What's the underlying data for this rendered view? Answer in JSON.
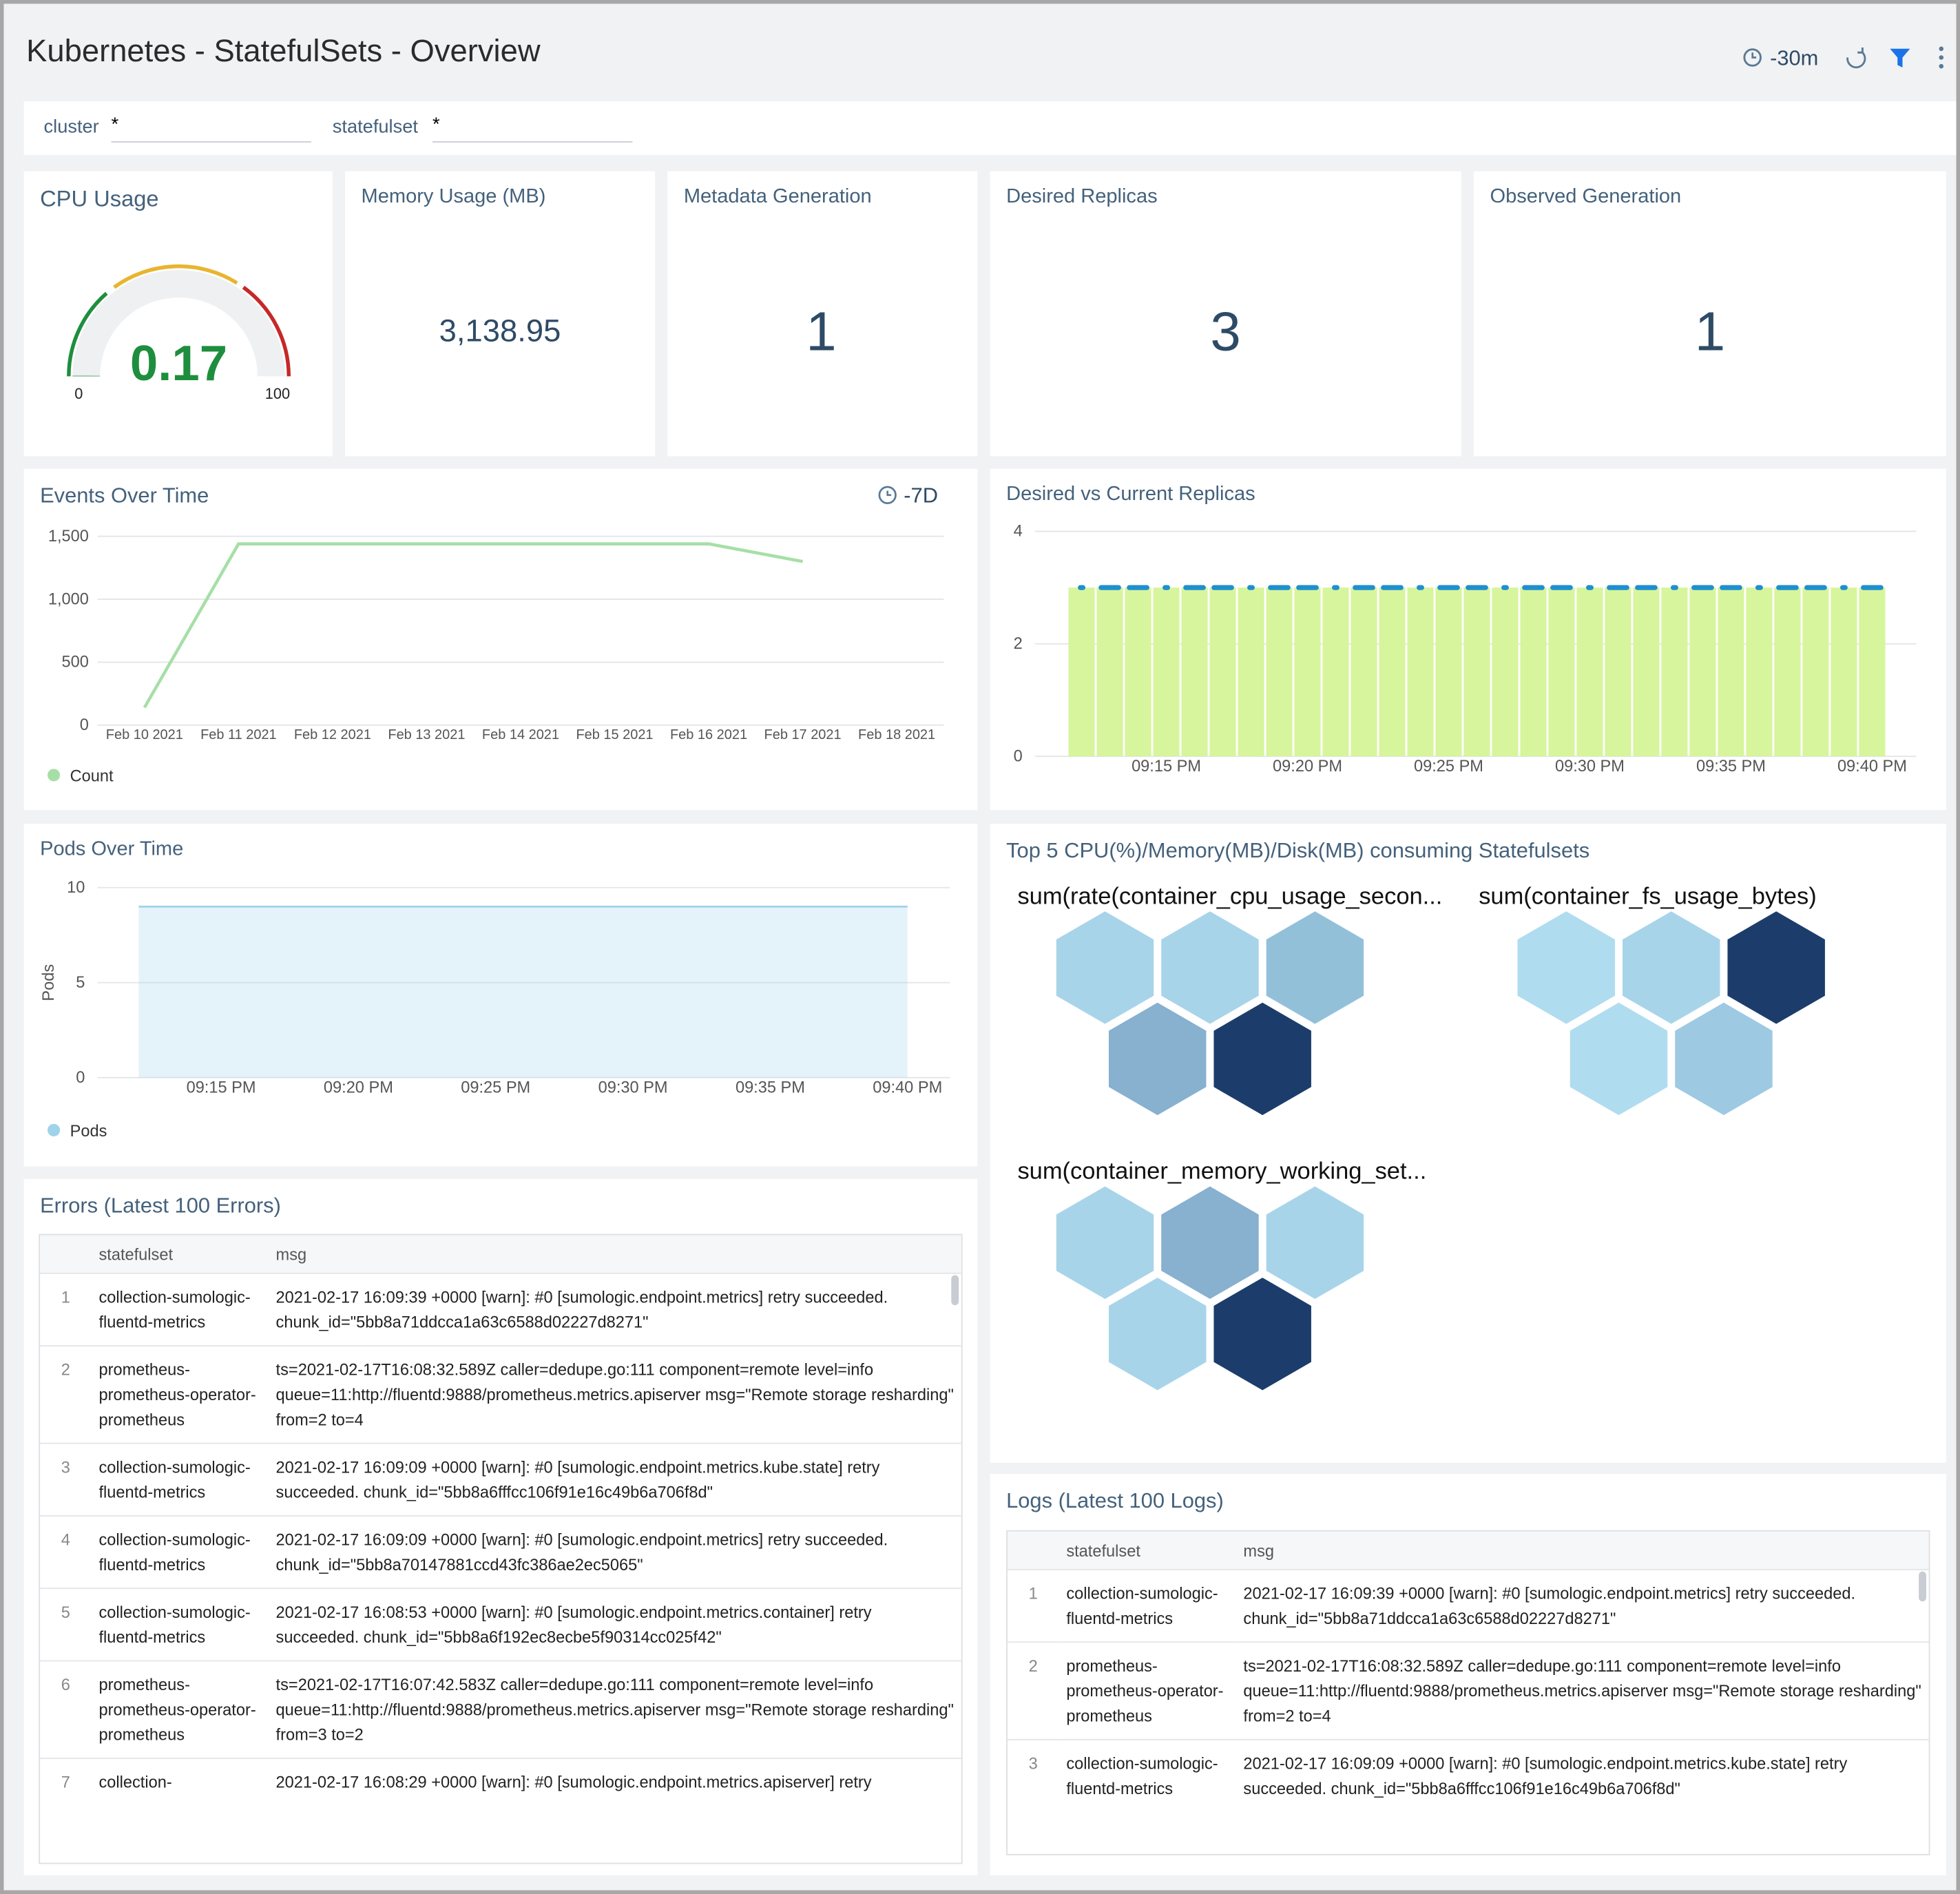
{
  "header": {
    "title": "Kubernetes - StatefulSets - Overview",
    "time_range": "-30m"
  },
  "filters": [
    {
      "label": "cluster",
      "value": "*"
    },
    {
      "label": "statefulset",
      "value": "*"
    }
  ],
  "stats": [
    {
      "title": "Memory Usage (MB)",
      "value": "3,138.95"
    },
    {
      "title": "Metadata Generation",
      "value": 1
    },
    {
      "title": "Desired Replicas",
      "value": 3
    },
    {
      "title": "Observed Generation",
      "value": 1
    }
  ],
  "chart_data": [
    {
      "type": "gauge",
      "title": "CPU Usage",
      "value": 0.17,
      "min": 0,
      "max": 100,
      "color": "#1e8e3e"
    },
    {
      "type": "line",
      "title": "Events Over Time",
      "time_range": "-7D",
      "categories": [
        "Feb 10 2021",
        "Feb 11 2021",
        "Feb 12 2021",
        "Feb 13 2021",
        "Feb 14 2021",
        "Feb 15 2021",
        "Feb 16 2021",
        "Feb 17 2021",
        "Feb 18 2021"
      ],
      "series": [
        {
          "name": "Count",
          "color": "#a6dfa6",
          "values": [
            140,
            1440,
            1440,
            1440,
            1440,
            1440,
            1440,
            1300,
            null
          ]
        }
      ],
      "ylim": [
        0,
        1500
      ],
      "yticks": [
        0,
        500,
        {
          "value": 1000,
          "label": "1,000"
        },
        {
          "value": 1500,
          "label": "1,500"
        }
      ],
      "grid": true
    },
    {
      "type": "bar",
      "title": "Desired vs Current Replicas",
      "categories": [
        null,
        null,
        null,
        "09:15 PM",
        null,
        null,
        null,
        null,
        "09:20 PM",
        null,
        null,
        null,
        null,
        "09:25 PM",
        null,
        null,
        null,
        null,
        "09:30 PM",
        null,
        null,
        null,
        null,
        "09:35 PM",
        null,
        null,
        null,
        null,
        "09:40 PM"
      ],
      "series": [
        {
          "type": "bar",
          "color": "#d7f59c",
          "values": [
            3,
            3,
            3,
            3,
            3,
            3,
            3,
            3,
            3,
            3,
            3,
            3,
            3,
            3,
            3,
            3,
            3,
            3,
            3,
            3,
            3,
            3,
            3,
            3,
            3,
            3,
            3,
            3,
            3
          ]
        },
        {
          "type": "scatter",
          "color": "#1f8fcf",
          "values": [
            3,
            3,
            3,
            3,
            3,
            3,
            3,
            3,
            3,
            3,
            3,
            3,
            3,
            3,
            3,
            3,
            3,
            3,
            3,
            3,
            3,
            3,
            3,
            3,
            3,
            3,
            3,
            3,
            3
          ]
        }
      ],
      "ylim": [
        0,
        4
      ],
      "yticks": [
        0,
        2,
        4
      ],
      "grid": true
    },
    {
      "type": "area",
      "title": "Pods Over Time",
      "y_label": "Pods",
      "categories": [
        null,
        null,
        null,
        "09:15 PM",
        null,
        null,
        null,
        null,
        "09:20 PM",
        null,
        null,
        null,
        null,
        "09:25 PM",
        null,
        null,
        null,
        null,
        "09:30 PM",
        null,
        null,
        null,
        null,
        "09:35 PM",
        null,
        null,
        null,
        null,
        "09:40 PM"
      ],
      "series": [
        {
          "name": "Pods",
          "color": "#9fd3ea",
          "values": [
            9,
            9,
            9,
            9,
            9,
            9,
            9,
            9,
            9,
            9,
            9,
            9,
            9,
            9,
            9,
            9,
            9,
            9,
            9,
            9,
            9,
            9,
            9,
            9,
            9,
            9,
            9,
            9,
            9
          ]
        }
      ],
      "ylim": [
        0,
        10
      ],
      "yticks": [
        0,
        5,
        10
      ],
      "grid": true
    }
  ],
  "honeycomb": {
    "title": "Top 5 CPU(%)/Memory(MB)/Disk(MB) consuming Statefulsets",
    "groups": [
      {
        "title": "sum(rate(container_cpu_usage_secon...",
        "cells": [
          "#a8d4ea",
          "#a8d4ea",
          "#93c0d9",
          "#88b0cf",
          "#1c3d6b"
        ]
      },
      {
        "title": "sum(container_fs_usage_bytes)",
        "cells": [
          "#b0dcef",
          "#a8d4ea",
          "#1c3d6b",
          "#b0dcef",
          "#9dc9e2"
        ]
      },
      {
        "title": "sum(container_memory_working_set...",
        "cells": [
          "#a8d4ea",
          "#88b0cf",
          "#a8d4ea",
          "#a8d4ea",
          "#1c3d6b"
        ]
      }
    ]
  },
  "errors": {
    "title": "Errors (Latest 100 Errors)",
    "columns": [
      "statefulset",
      "msg"
    ],
    "rows": [
      [
        1,
        "collection-sumologic-fluentd-metrics",
        "2021-02-17 16:09:39 +0000 [warn]: #0 [sumologic.endpoint.metrics] retry succeeded. chunk_id=\"5bb8a71ddcca1a63c6588d02227d8271\""
      ],
      [
        2,
        "prometheus-prometheus-operator-prometheus",
        "ts=2021-02-17T16:08:32.589Z caller=dedupe.go:111 component=remote level=info queue=11:http://fluentd:9888/prometheus.metrics.apiserver msg=\"Remote storage resharding\" from=2 to=4"
      ],
      [
        3,
        "collection-sumologic-fluentd-metrics",
        "2021-02-17 16:09:09 +0000 [warn]: #0 [sumologic.endpoint.metrics.kube.state] retry succeeded. chunk_id=\"5bb8a6fffcc106f91e16c49b6a706f8d\""
      ],
      [
        4,
        "collection-sumologic-fluentd-metrics",
        "2021-02-17 16:09:09 +0000 [warn]: #0 [sumologic.endpoint.metrics] retry succeeded. chunk_id=\"5bb8a70147881ccd43fc386ae2ec5065\""
      ],
      [
        5,
        "collection-sumologic-fluentd-metrics",
        "2021-02-17 16:08:53 +0000 [warn]: #0 [sumologic.endpoint.metrics.container] retry succeeded. chunk_id=\"5bb8a6f192ec8ecbe5f90314cc025f42\""
      ],
      [
        6,
        "prometheus-prometheus-operator-prometheus",
        "ts=2021-02-17T16:07:42.583Z caller=dedupe.go:111 component=remote level=info queue=11:http://fluentd:9888/prometheus.metrics.apiserver msg=\"Remote storage resharding\" from=3 to=2"
      ],
      [
        7,
        "collection-",
        "2021-02-17 16:08:29 +0000 [warn]: #0 [sumologic.endpoint.metrics.apiserver] retry"
      ]
    ]
  },
  "logs": {
    "title": "Logs (Latest 100 Logs)",
    "columns": [
      "statefulset",
      "msg"
    ],
    "rows": [
      [
        1,
        "collection-sumologic-fluentd-metrics",
        "2021-02-17 16:09:39 +0000 [warn]: #0 [sumologic.endpoint.metrics] retry succeeded. chunk_id=\"5bb8a71ddcca1a63c6588d02227d8271\""
      ],
      [
        2,
        "prometheus-prometheus-operator-prometheus",
        "ts=2021-02-17T16:08:32.589Z caller=dedupe.go:111 component=remote level=info queue=11:http://fluentd:9888/prometheus.metrics.apiserver msg=\"Remote storage resharding\" from=2 to=4"
      ],
      [
        3,
        "collection-sumologic-fluentd-metrics",
        "2021-02-17 16:09:09 +0000 [warn]: #0 [sumologic.endpoint.metrics.kube.state] retry succeeded. chunk_id=\"5bb8a6fffcc106f91e16c49b6a706f8d\""
      ]
    ]
  }
}
